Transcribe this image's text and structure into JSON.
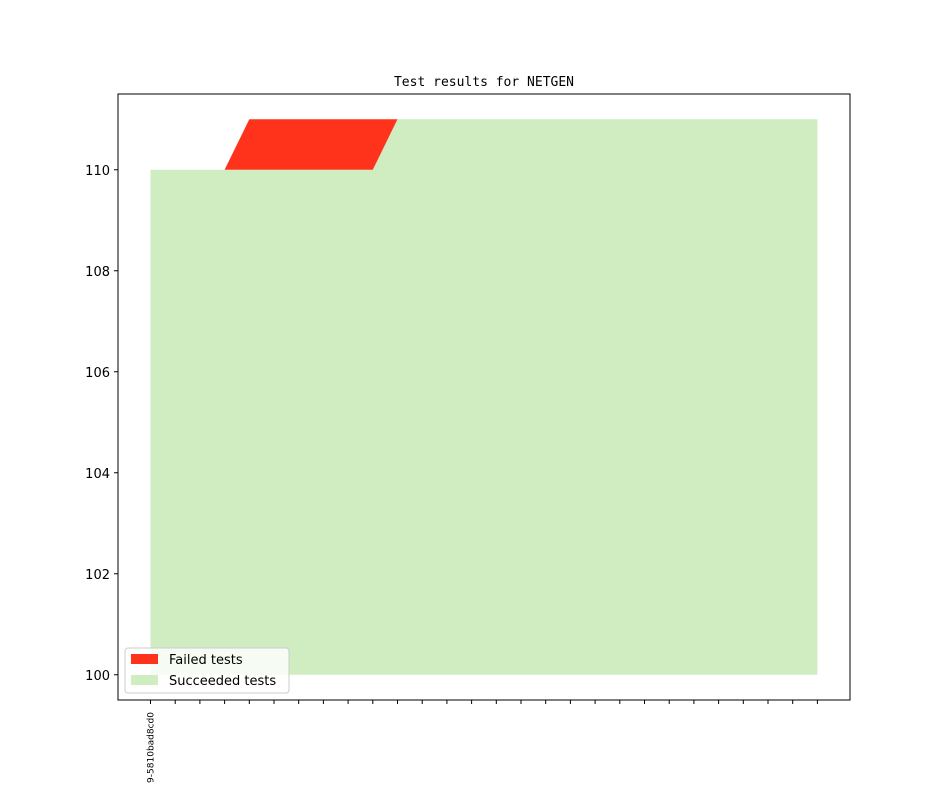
{
  "chart_data": {
    "type": "area",
    "title": "Test results for NETGEN",
    "xlabel": "",
    "ylabel": "",
    "ylim": [
      99.5,
      111.5
    ],
    "yticks": [
      100,
      102,
      104,
      106,
      108,
      110
    ],
    "x_count": 28,
    "x_tick_labels": [
      "9-5810bad8cd0"
    ],
    "series": [
      {
        "name": "Succeeded tests",
        "color": "#cfedc0",
        "base": [
          100,
          100,
          100,
          100,
          100,
          100,
          100,
          100,
          100,
          100,
          100,
          100,
          100,
          100,
          100,
          100,
          100,
          100,
          100,
          100,
          100,
          100,
          100,
          100,
          100,
          100,
          100,
          100
        ],
        "top": [
          110,
          110,
          110,
          110,
          110,
          110,
          110,
          110,
          110,
          110,
          111,
          111,
          111,
          111,
          111,
          111,
          111,
          111,
          111,
          111,
          111,
          111,
          111,
          111,
          111,
          111,
          111,
          111
        ]
      },
      {
        "name": "Failed tests",
        "color": "#ff331c",
        "base": [
          110,
          110,
          110,
          110,
          110,
          110,
          110,
          110,
          110,
          110,
          111,
          111,
          111,
          111,
          111,
          111,
          111,
          111,
          111,
          111,
          111,
          111,
          111,
          111,
          111,
          111,
          111,
          111
        ],
        "top": [
          110,
          110,
          110,
          110,
          111,
          111,
          111,
          111,
          111,
          111,
          111,
          111,
          111,
          111,
          111,
          111,
          111,
          111,
          111,
          111,
          111,
          111,
          111,
          111,
          111,
          111,
          111,
          111
        ]
      }
    ],
    "legend": {
      "placement": "lower-left",
      "entries": [
        {
          "label": "Failed tests",
          "color": "#ff331c"
        },
        {
          "label": "Succeeded tests",
          "color": "#cfedc0"
        }
      ]
    },
    "grid": false
  }
}
